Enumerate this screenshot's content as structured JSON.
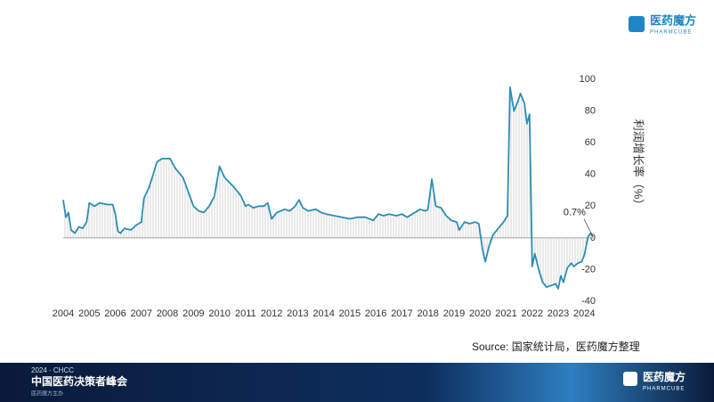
{
  "header": {
    "brand": "医药魔方",
    "brand_en": "PHARMCUBE"
  },
  "chart_data": {
    "type": "line",
    "y_label": "利润增长率（%）",
    "annotation": "0.7%",
    "color": "#2b8eb2",
    "x": [
      2004.0,
      2004.1,
      2004.2,
      2004.3,
      2004.45,
      2004.6,
      2004.75,
      2004.9,
      2005.0,
      2005.2,
      2005.4,
      2005.7,
      2005.9,
      2006.0,
      2006.1,
      2006.2,
      2006.35,
      2006.6,
      2006.8,
      2007.0,
      2007.1,
      2007.3,
      2007.6,
      2007.8,
      2008.1,
      2008.3,
      2008.6,
      2008.8,
      2009.0,
      2009.2,
      2009.4,
      2009.6,
      2009.8,
      2010.0,
      2010.2,
      2010.5,
      2010.8,
      2011.0,
      2011.1,
      2011.3,
      2011.5,
      2011.7,
      2011.85,
      2012.0,
      2012.2,
      2012.5,
      2012.7,
      2012.9,
      2013.05,
      2013.2,
      2013.4,
      2013.7,
      2013.9,
      2014.1,
      2014.4,
      2014.7,
      2015.0,
      2015.3,
      2015.6,
      2015.9,
      2016.1,
      2016.3,
      2016.5,
      2016.8,
      2017.0,
      2017.2,
      2017.5,
      2017.7,
      2017.9,
      2018.0,
      2018.15,
      2018.3,
      2018.5,
      2018.7,
      2018.9,
      2019.1,
      2019.2,
      2019.4,
      2019.6,
      2019.8,
      2019.95,
      2020.1,
      2020.2,
      2020.35,
      2020.5,
      2020.7,
      2020.9,
      2021.05,
      2021.15,
      2021.3,
      2021.45,
      2021.55,
      2021.7,
      2021.8,
      2021.9,
      2022.0,
      2022.1,
      2022.25,
      2022.4,
      2022.55,
      2022.75,
      2022.9,
      2023.0,
      2023.1,
      2023.2,
      2023.35,
      2023.5,
      2023.6,
      2023.75,
      2023.9,
      2024.0,
      2024.15,
      2024.25,
      2024.33
    ],
    "values": [
      24,
      13,
      16,
      5,
      3,
      7,
      6,
      10,
      22,
      20,
      22,
      21,
      21,
      15,
      4,
      3,
      6,
      5,
      8,
      10,
      25,
      32,
      48,
      50,
      50,
      44,
      38,
      29,
      20,
      17,
      16,
      20,
      26,
      45,
      38,
      33,
      27,
      20,
      21,
      19,
      20,
      20,
      22,
      12,
      16,
      18,
      17,
      20,
      24,
      19,
      17,
      18,
      16,
      15,
      14,
      13,
      12,
      13,
      13,
      11,
      15,
      14,
      15,
      14,
      15,
      13,
      16,
      18,
      17,
      18,
      37,
      20,
      19,
      14,
      11,
      10,
      5,
      10,
      9,
      10,
      9,
      -8,
      -15,
      -5,
      2,
      6,
      10,
      14,
      95,
      80,
      86,
      91,
      85,
      72,
      78,
      -18,
      -10,
      -20,
      -28,
      -31,
      -30,
      -29,
      -32,
      -24,
      -28,
      -19,
      -16,
      -18,
      -16,
      -15,
      -11,
      1,
      3,
      0.7
    ],
    "xlim": [
      2004,
      2024.4
    ],
    "xticks": [
      2004,
      2005,
      2006,
      2007,
      2008,
      2009,
      2010,
      2011,
      2012,
      2013,
      2014,
      2015,
      2016,
      2017,
      2018,
      2019,
      2020,
      2021,
      2022,
      2023,
      2024
    ],
    "ylim": [
      -40,
      100
    ],
    "yticks": [
      -40,
      -20,
      0,
      20,
      40,
      60,
      80,
      100
    ],
    "source": "Source: 国家统计局，医药魔方整理"
  },
  "footer": {
    "event": "2024 · CHCC",
    "title": "中国医药决策者峰会",
    "subtitle": "医药魔方主办",
    "brand": "医药魔方",
    "brand_en": "PHARMCUBE"
  }
}
